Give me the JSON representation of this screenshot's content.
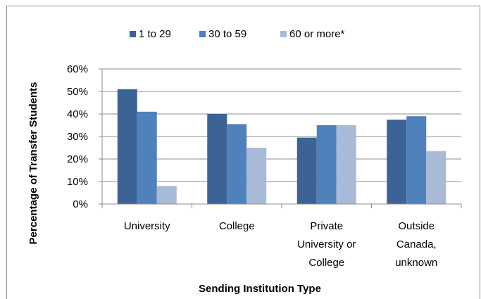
{
  "chart_data": {
    "type": "bar",
    "title": "",
    "xlabel": "Sending Institution Type",
    "ylabel": "Percentage of Transfer Students",
    "ylim": [
      0,
      60
    ],
    "yticks": [
      "0%",
      "10%",
      "20%",
      "30%",
      "40%",
      "50%",
      "60%"
    ],
    "categories": [
      [
        "University"
      ],
      [
        "College"
      ],
      [
        "Private",
        "University or",
        "College"
      ],
      [
        "Outside",
        "Canada,",
        "unknown"
      ]
    ],
    "series": [
      {
        "name": "1 to 29",
        "color": "#3d6396",
        "values": [
          51,
          40,
          29.5,
          37.5
        ]
      },
      {
        "name": "30 to 59",
        "color": "#4f81bd",
        "values": [
          41,
          35.5,
          35,
          39
        ]
      },
      {
        "name": "60 or more*",
        "color": "#a8bad8",
        "values": [
          8,
          25,
          35,
          23.5
        ]
      }
    ],
    "legend_position": "top",
    "grid": true
  }
}
